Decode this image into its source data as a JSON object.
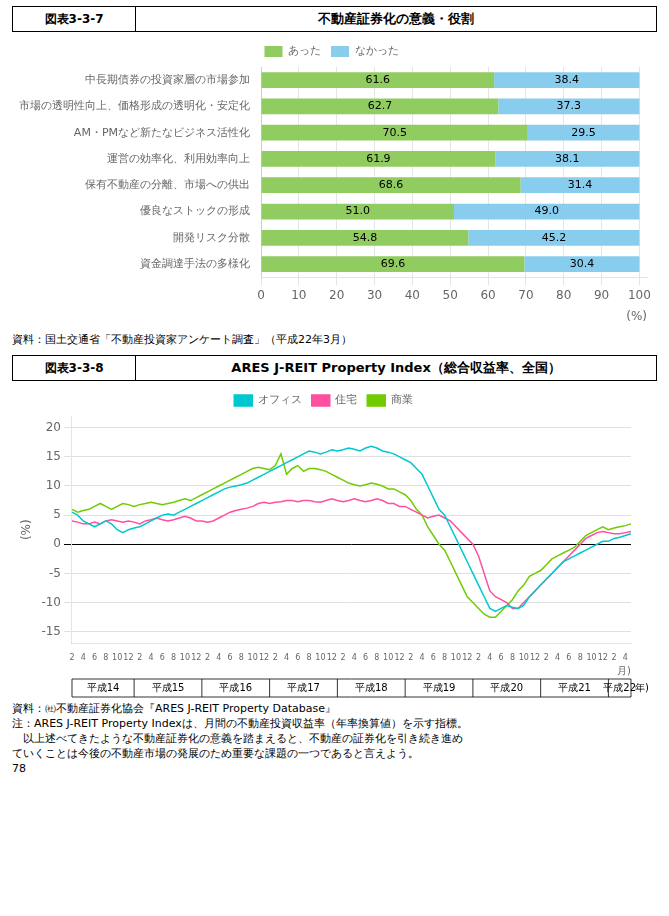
{
  "chart_data": [
    {
      "type": "bar",
      "orientation": "horizontal",
      "stacked": true,
      "title": "不動産証券化の意義・役割",
      "subtitle": "図表3-3-7",
      "xlabel": "(%)",
      "categories": [
        "中長期債券の投資家層の市場参加",
        "市場の透明性向上、価格形成の透明化・安定化",
        "AM・PMなど新たなビジネス活性化",
        "運営の効率化、利用効率向上",
        "保有不動産の分離、市場への供出",
        "優良なストックの形成",
        "開発リスク分散",
        "資金調達手法の多様化"
      ],
      "series": [
        {
          "name": "あった",
          "color": "#90cc60",
          "values": [
            61.6,
            62.7,
            70.5,
            61.9,
            68.6,
            51.0,
            54.8,
            69.6
          ],
          "value_labels": [
            "61.6",
            "62.7",
            "70.5",
            "61.9",
            "68.6",
            "51.0",
            "54.8",
            "69.6"
          ]
        },
        {
          "name": "なかった",
          "color": "#88ccee",
          "values": [
            38.4,
            37.3,
            29.5,
            38.1,
            31.4,
            49.0,
            45.2,
            30.4
          ],
          "value_labels": [
            "38.4",
            "37.3",
            "29.5",
            "38.1",
            "31.4",
            "49.0",
            "45.2",
            "30.4"
          ]
        }
      ],
      "xlim": [
        0,
        102
      ],
      "xticks": [
        0,
        10,
        20,
        30,
        40,
        50,
        60,
        70,
        80,
        90,
        100
      ],
      "grid": true,
      "legend": "top",
      "data_labels": true,
      "annotations": [
        "資料：国土交通省「不動産投資家アンケート調査」（平成22年3月）"
      ]
    },
    {
      "type": "line",
      "title": "ARES J-REIT Property Index（総合収益率、全国）",
      "subtitle": "図表3-3-8",
      "ylabel": "(%)",
      "xlabel": "月)",
      "categories": [
        "2",
        null,
        "4",
        null,
        "6",
        null,
        "8",
        null,
        "10",
        null,
        "12",
        null,
        "2",
        null,
        "4",
        null,
        "6",
        null,
        "8",
        null,
        "10",
        null,
        "12",
        null,
        "2",
        null,
        "4",
        null,
        "6",
        null,
        "8",
        null,
        "10",
        null,
        "12",
        null,
        "2",
        null,
        "4",
        null,
        "6",
        null,
        "8",
        null,
        "10",
        null,
        "12",
        null,
        "2",
        null,
        "4",
        null,
        "6",
        null,
        "8",
        null,
        "10",
        null,
        "12",
        null,
        "2",
        null,
        "4",
        null,
        "6",
        null,
        "8",
        null,
        "10",
        null,
        "12",
        null,
        "2",
        null,
        "4",
        null,
        "6",
        null,
        "8",
        null,
        "10",
        null,
        "12",
        null,
        "2",
        null,
        "4",
        null,
        "6",
        null,
        "8",
        null,
        "10",
        null,
        "12",
        null,
        "2",
        null,
        "4",
        null
      ],
      "x_groups": [
        "平成14",
        "平成15",
        "平成16",
        "平成17",
        "平成18",
        "平成19",
        "平成20",
        "平成21",
        "平成22"
      ],
      "x_groups_label": "年)",
      "series": [
        {
          "name": "オフィス",
          "color": "#00c8d0",
          "values": [
            5.5,
            5.0,
            4.0,
            3.5,
            3.0,
            3.5,
            4.0,
            3.5,
            2.5,
            2.0,
            2.5,
            2.8,
            3.0,
            3.5,
            4.0,
            4.5,
            5.0,
            5.2,
            5.0,
            5.5,
            6.0,
            6.5,
            7.0,
            7.5,
            8.0,
            8.5,
            9.0,
            9.5,
            9.8,
            10.0,
            10.2,
            10.5,
            11.0,
            11.5,
            12.0,
            12.5,
            13.0,
            13.5,
            14.0,
            14.5,
            15.0,
            15.5,
            16.0,
            15.8,
            15.5,
            15.8,
            16.2,
            16.0,
            16.2,
            16.5,
            16.3,
            16.0,
            16.5,
            16.8,
            16.5,
            16.0,
            15.8,
            15.5,
            15.0,
            14.5,
            14.0,
            13.0,
            12.0,
            10.0,
            8.0,
            6.0,
            5.0,
            3.0,
            1.0,
            -1.0,
            -3.0,
            -5.0,
            -7.0,
            -9.0,
            -11.0,
            -11.5,
            -11.0,
            -10.5,
            -10.8,
            -11.0,
            -10.5,
            -9.0,
            -8.0,
            -7.0,
            -6.0,
            -5.0,
            -4.0,
            -3.0,
            -2.5,
            -2.0,
            -1.5,
            -1.0,
            -0.5,
            0.0,
            0.5,
            0.5,
            1.0,
            1.2,
            1.5,
            1.8
          ]
        },
        {
          "name": "住宅",
          "color": "#ff4fa0",
          "values": [
            4.0,
            3.8,
            3.5,
            3.5,
            3.8,
            3.5,
            4.0,
            4.2,
            4.0,
            3.8,
            4.0,
            3.8,
            3.5,
            4.0,
            4.2,
            4.5,
            4.2,
            4.0,
            4.2,
            4.5,
            4.8,
            4.5,
            4.0,
            4.0,
            3.8,
            4.0,
            4.5,
            5.0,
            5.5,
            5.8,
            6.0,
            6.2,
            6.5,
            7.0,
            7.2,
            7.0,
            7.2,
            7.3,
            7.5,
            7.5,
            7.3,
            7.5,
            7.5,
            7.3,
            7.2,
            7.5,
            7.8,
            7.5,
            7.3,
            7.5,
            7.8,
            7.5,
            7.3,
            7.5,
            7.8,
            7.5,
            7.0,
            7.0,
            6.5,
            6.5,
            6.0,
            5.5,
            5.0,
            4.5,
            4.8,
            5.0,
            4.5,
            4.0,
            3.0,
            2.0,
            1.0,
            0.0,
            -2.0,
            -5.0,
            -8.0,
            -9.0,
            -9.5,
            -10.0,
            -11.0,
            -11.0,
            -10.0,
            -9.0,
            -8.0,
            -7.0,
            -6.0,
            -5.0,
            -4.0,
            -3.0,
            -2.0,
            -1.0,
            0.0,
            1.0,
            1.5,
            2.0,
            2.2,
            2.0,
            1.8,
            1.8,
            2.0,
            2.2
          ]
        },
        {
          "name": "商業",
          "color": "#70cc00",
          "values": [
            6.0,
            5.5,
            5.8,
            6.0,
            6.5,
            7.0,
            6.5,
            6.0,
            6.5,
            7.0,
            6.8,
            6.5,
            6.8,
            7.0,
            7.2,
            7.0,
            6.8,
            7.0,
            7.2,
            7.5,
            7.8,
            7.5,
            8.0,
            8.5,
            9.0,
            9.5,
            10.0,
            10.5,
            11.0,
            11.5,
            12.0,
            12.5,
            13.0,
            13.2,
            13.0,
            12.8,
            13.5,
            15.5,
            12.0,
            13.0,
            13.5,
            12.5,
            13.0,
            13.0,
            12.8,
            12.5,
            12.0,
            11.5,
            11.0,
            10.5,
            10.2,
            10.0,
            10.2,
            10.5,
            10.3,
            10.0,
            9.5,
            9.5,
            9.0,
            8.5,
            7.5,
            6.0,
            5.0,
            3.0,
            1.5,
            0.0,
            -1.0,
            -3.0,
            -5.0,
            -7.0,
            -9.0,
            -10.0,
            -11.0,
            -12.0,
            -12.5,
            -12.5,
            -11.5,
            -10.5,
            -9.5,
            -8.0,
            -7.0,
            -5.5,
            -5.0,
            -4.5,
            -3.5,
            -2.5,
            -2.0,
            -1.5,
            -1.0,
            -0.5,
            0.5,
            1.5,
            2.0,
            2.5,
            3.0,
            2.5,
            2.8,
            3.0,
            3.2,
            3.5
          ]
        }
      ],
      "ylim": [
        -17,
        22
      ],
      "yticks": [
        20,
        15,
        10,
        5,
        0,
        -5,
        -10,
        -15
      ],
      "grid": true,
      "legend": "top",
      "annotations": [
        "資料：㈳不動産証券化協会『ARES J-REIT Property Database』",
        "注：ARES J-REIT Property Indexは、月間の不動産投資収益率（年率換算値）を示す指標。",
        "　以上述べてきたような不動産証券化の意義を踏まえると、不動産の証券化を引き続き進め",
        "ていくことは今後の不動産市場の発展のため重要な課題の一つであると言えよう。",
        "78"
      ]
    }
  ]
}
